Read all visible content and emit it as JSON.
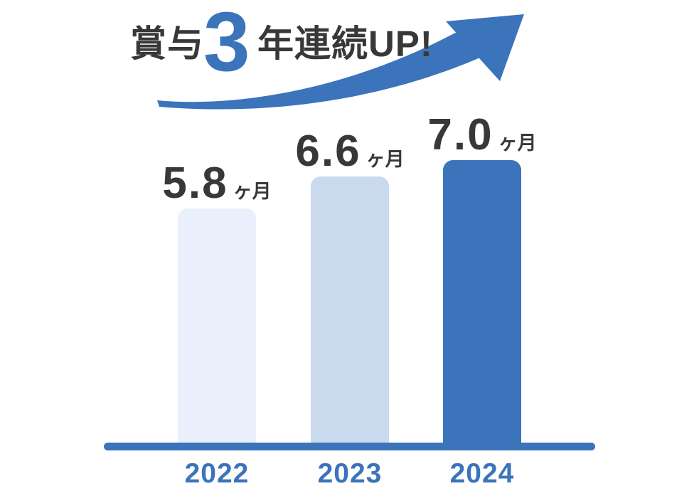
{
  "title": {
    "prefix": "賞与",
    "highlight": "3",
    "suffix": "年連続UP!"
  },
  "colors": {
    "accent": "#3b74ba",
    "text_dark": "#383838",
    "bar_2022": "#e9effb",
    "bar_2023": "#c9d9ee",
    "bar_2024": "#3b74ba"
  },
  "chart_data": {
    "type": "bar",
    "title": "賞与3年連続UP!",
    "categories": [
      "2022",
      "2023",
      "2024"
    ],
    "values": [
      5.8,
      6.6,
      7.0
    ],
    "unit": "ヶ月",
    "value_labels": [
      {
        "number": "5.8",
        "unit": "ヶ月"
      },
      {
        "number": "6.6",
        "unit": "ヶ月"
      },
      {
        "number": "7.0",
        "unit": "ヶ月"
      }
    ],
    "ylim": [
      0,
      7.0
    ],
    "bar_colors": [
      "#e9effb",
      "#c9d9ee",
      "#3b74ba"
    ],
    "grid": false,
    "legend": "none",
    "annotation": "upward-swoosh-arrow"
  }
}
